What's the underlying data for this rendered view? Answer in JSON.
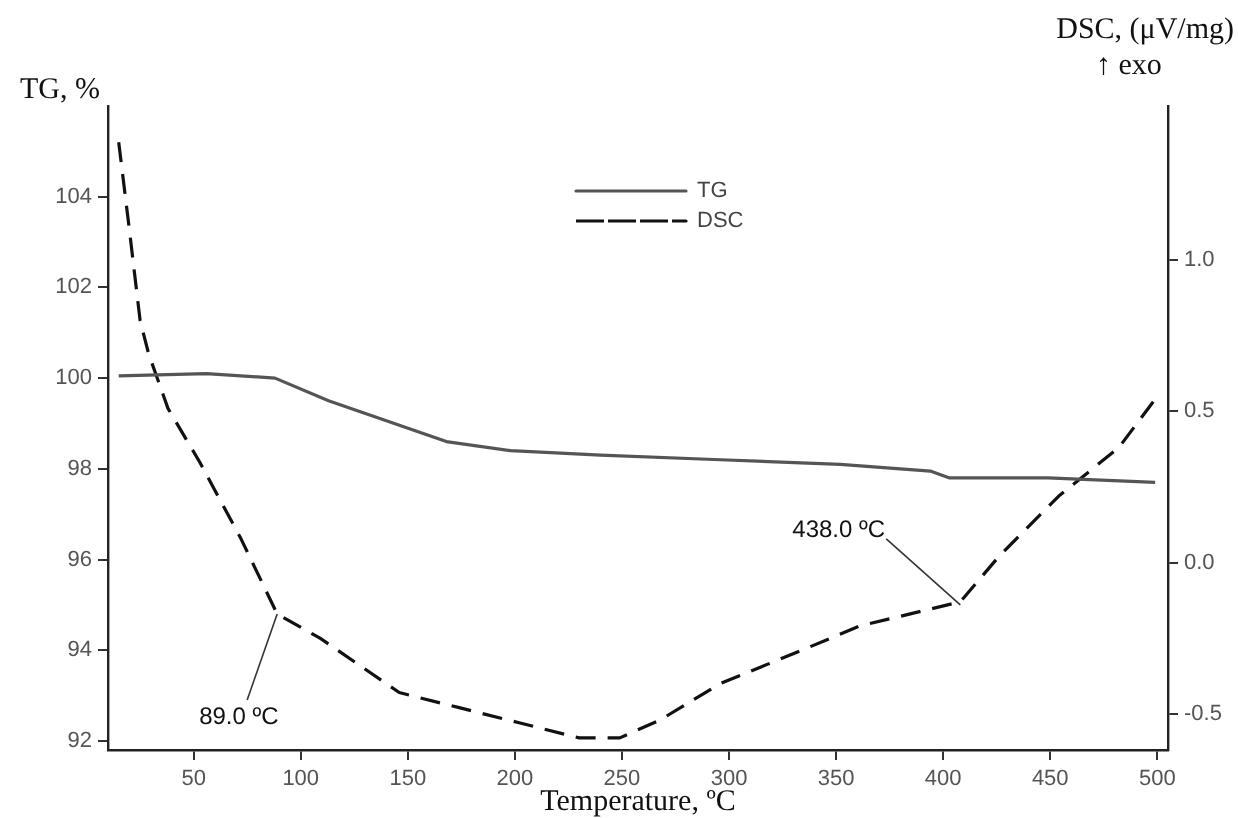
{
  "chart_data": {
    "type": "line",
    "xlabel": "Temperature, ºC",
    "ylabel": "TG, %",
    "y2label": "DSC, (μV/mg)\n↑ exo",
    "xlim": [
      10,
      505
    ],
    "xticks": [
      50,
      100,
      150,
      200,
      250,
      300,
      350,
      400,
      450,
      500
    ],
    "ylim": [
      91.8,
      106
    ],
    "yticks": [
      92,
      94,
      96,
      98,
      100,
      102,
      104
    ],
    "y2lim": [
      -0.62,
      1.51
    ],
    "y2ticks": [
      {
        "value": -0.5,
        "label": "-0.5"
      },
      {
        "value": 0,
        "label": "0.0"
      },
      {
        "value": 0.5,
        "label": "0.5"
      },
      {
        "value": 1,
        "label": "1.0"
      }
    ],
    "grid": false,
    "legend": "top",
    "marker": "none",
    "series": [
      {
        "name": "TG",
        "color": "#555555",
        "line_style": "solid",
        "x": [
          15,
          56,
          88,
          113,
          168,
          198,
          240,
          296,
          352,
          394,
          403,
          449,
          499
        ],
        "values": [
          100.05,
          100.1,
          100.0,
          99.5,
          98.6,
          98.4,
          98.3,
          98.2,
          98.1,
          97.95,
          97.8,
          97.8,
          97.7
        ]
      },
      {
        "name": "DSC",
        "color": "#111111",
        "line_style": "dashed",
        "axis": "y2",
        "x": [
          15,
          20,
          25,
          29,
          38,
          53,
          72,
          89,
          109,
          146,
          174,
          202,
          230,
          249,
          268,
          296,
          334,
          361,
          408,
          426,
          454,
          482,
          499
        ],
        "values": [
          1.39,
          1.1,
          0.8,
          0.69,
          0.51,
          0.33,
          0.08,
          -0.17,
          -0.25,
          -0.43,
          -0.48,
          -0.53,
          -0.58,
          -0.58,
          -0.52,
          -0.4,
          -0.29,
          -0.21,
          -0.13,
          0.02,
          0.22,
          0.38,
          0.54
        ]
      }
    ],
    "annotations": [
      {
        "text": "89.0 ºC",
        "x": 89,
        "y": 94.8
      },
      {
        "text": "438.0 ºC",
        "x": 408,
        "y": 95.0
      }
    ]
  }
}
